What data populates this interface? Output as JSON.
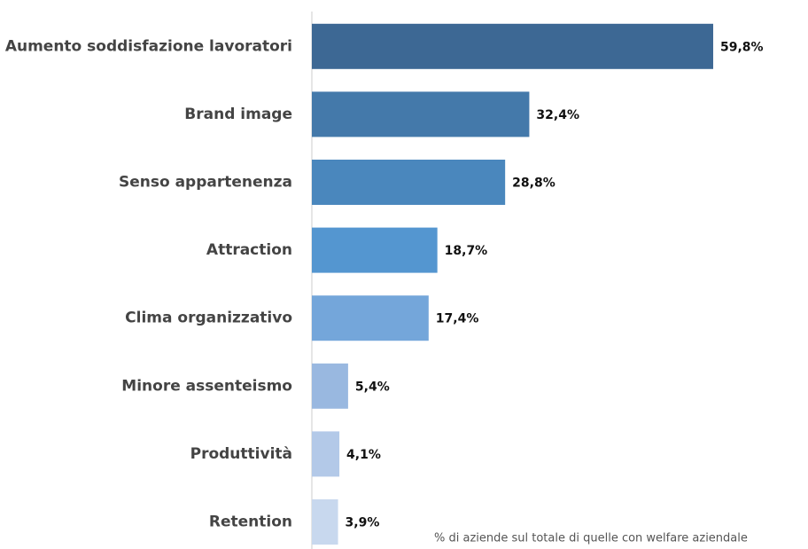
{
  "chart_data": {
    "type": "bar",
    "orientation": "horizontal",
    "categories": [
      "Aumento soddisfazione lavoratori",
      "Brand image",
      "Senso appartenenza",
      "Attraction",
      "Clima organizzativo",
      "Minore assenteismo",
      "Produttività",
      "Retention"
    ],
    "values": [
      59.8,
      32.4,
      28.8,
      18.7,
      17.4,
      5.4,
      4.1,
      3.9
    ],
    "value_labels": [
      "59,8%",
      "32,4%",
      "28,8%",
      "18,7%",
      "17,4%",
      "5,4%",
      "4,1%",
      "3,9%"
    ],
    "colors": [
      "#3d6894",
      "#4479aa",
      "#4a87bd",
      "#5496d0",
      "#74a6da",
      "#99b8e0",
      "#b3c9e8",
      "#c8d8ee"
    ],
    "annotation": "% di aziende sul totale di quelle con welfare aziendale"
  }
}
